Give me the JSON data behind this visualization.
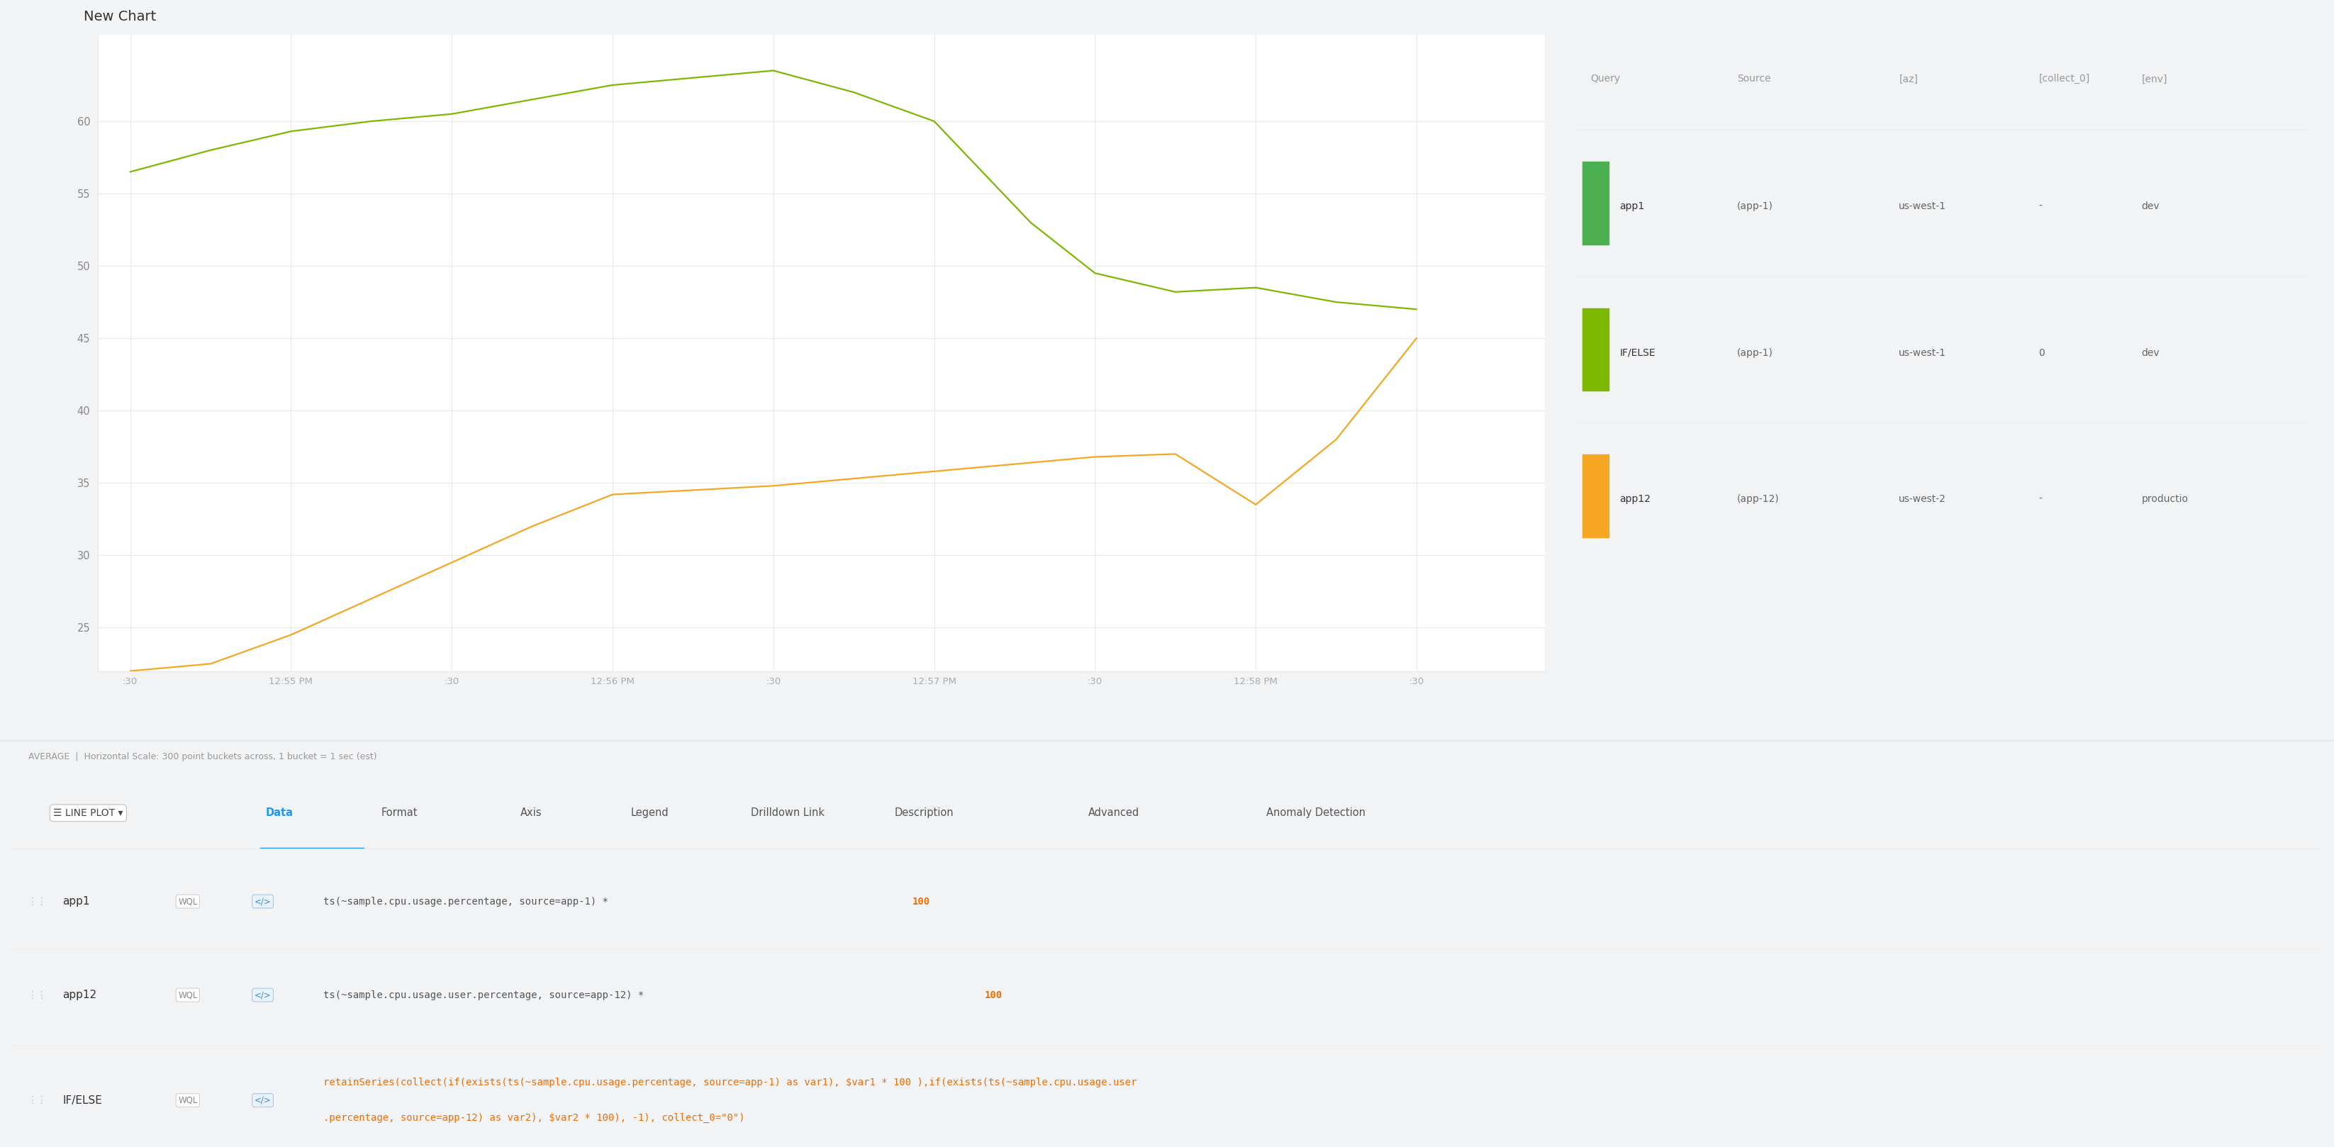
{
  "title": "New Chart",
  "page_bg": "#f2f3f5",
  "chart_bg": "#ffffff",
  "ylim": [
    22,
    66
  ],
  "yticks": [
    25,
    30,
    35,
    40,
    45,
    50,
    55,
    60
  ],
  "x_labels": [
    ":30",
    "12:55 PM",
    ":30",
    "12:56 PM",
    ":30",
    "12:57 PM",
    ":30",
    "12:58 PM",
    ":30"
  ],
  "x_positions": [
    0,
    1,
    2,
    3,
    4,
    5,
    6,
    7,
    8
  ],
  "series": [
    {
      "name": "app1",
      "color": "#7db800",
      "linewidth": 1.6,
      "x": [
        0,
        0.5,
        1,
        1.5,
        2,
        2.5,
        3,
        3.5,
        4,
        4.5,
        5,
        5.3,
        5.6,
        6,
        6.5,
        7,
        7.5,
        8
      ],
      "y": [
        56.5,
        58.0,
        59.3,
        60.0,
        60.5,
        61.5,
        62.5,
        63.0,
        63.5,
        62.0,
        60.0,
        56.5,
        53.0,
        49.5,
        48.2,
        48.5,
        47.5,
        47.0
      ]
    },
    {
      "name": "app12",
      "color": "#f5a623",
      "linewidth": 1.6,
      "x": [
        0,
        0.5,
        1,
        1.5,
        2,
        2.5,
        3,
        3.5,
        4,
        4.5,
        5,
        5.5,
        6,
        6.5,
        7,
        7.5,
        8
      ],
      "y": [
        22.0,
        22.5,
        24.5,
        27.0,
        29.5,
        32.0,
        34.2,
        34.5,
        34.8,
        35.3,
        35.8,
        36.3,
        36.8,
        37.0,
        33.5,
        38.0,
        45.0
      ]
    }
  ],
  "legend_headers": [
    "Query",
    "Source",
    "[az]",
    "[collect_0]",
    "[env]"
  ],
  "legend_rows": [
    {
      "query": "app1",
      "color": "#4caf50",
      "source": "(app-1)",
      "az": "us-west-1",
      "collect_0": "-",
      "env": "dev"
    },
    {
      "query": "IF/ELSE",
      "color": "#7db800",
      "source": "(app-1)",
      "az": "us-west-1",
      "collect_0": "0",
      "env": "dev"
    },
    {
      "query": "app12",
      "color": "#f5a623",
      "source": "(app-12)",
      "az": "us-west-2",
      "collect_0": "-",
      "env": "productio"
    }
  ],
  "footer_text": "AVERAGE  |  Horizontal Scale: 300 point buckets across, 1 bucket = 1 sec (est)",
  "tabs": [
    "LINE PLOT ▾",
    "Data",
    "Format",
    "Axis",
    "Legend",
    "Drilldown Link",
    "Description",
    "Advanced",
    "Anomaly Detection"
  ],
  "active_tab": "Data",
  "query_rows": [
    {
      "name": "app1",
      "label_color": "#333333",
      "query_parts": [
        {
          "text": "ts(~sample.cpu.usage.percentage, source=app-1) * ",
          "color": "#555555"
        },
        {
          "text": "100",
          "color": "#e8700a"
        }
      ]
    },
    {
      "name": "app12",
      "label_color": "#333333",
      "query_parts": [
        {
          "text": "ts(~sample.cpu.usage.user.percentage, source=app-12) * ",
          "color": "#555555"
        },
        {
          "text": "100",
          "color": "#e8700a"
        }
      ]
    },
    {
      "name": "IF/ELSE",
      "label_color": "#333333",
      "query_parts": [
        {
          "text": "retainSeries(collect(if(exists(ts(~sample.cpu.usage.percentage, source=app-1) as var1), $var1 * ",
          "color": "#e8700a"
        },
        {
          "text": "100",
          "color": "#e8700a"
        },
        {
          "text": " ),if(exists(ts(~sample.cpu.usage.user",
          "color": "#e8700a"
        },
        {
          "text": "\n.percentage, source=app-12) as var2), $var2 * 100), -1), collect_0=\"0\")",
          "color": "#e8700a"
        }
      ]
    }
  ]
}
